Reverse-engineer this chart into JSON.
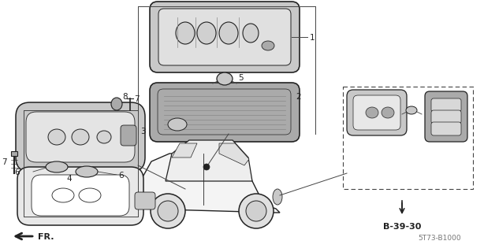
{
  "bg_color": "#ffffff",
  "line_color": "#444444",
  "dark_color": "#222222",
  "gray1": "#c8c8c8",
  "gray2": "#aaaaaa",
  "gray3": "#888888",
  "diagram_code": "5T73-B1000",
  "ref_code": "B-39-30",
  "figsize": [
    6.14,
    3.2
  ],
  "dpi": 100
}
